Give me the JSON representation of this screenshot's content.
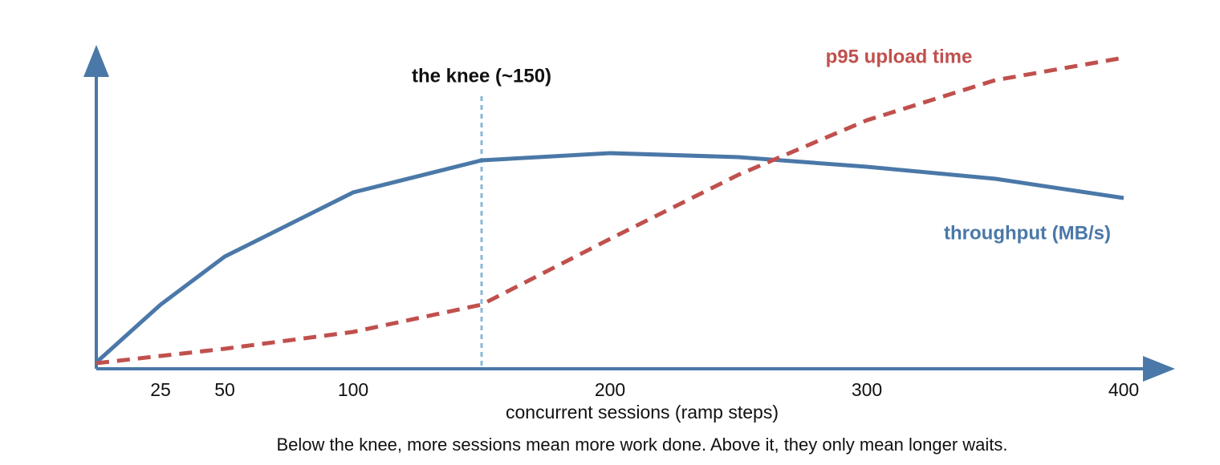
{
  "chart_data": {
    "type": "line",
    "x_label": "concurrent sessions (ramp steps)",
    "caption": "Below the knee, more sessions mean more work done. Above it, they only mean longer waits.",
    "xlim": [
      0,
      400
    ],
    "xticks": [
      25,
      50,
      100,
      200,
      300,
      400
    ],
    "ylim": [
      0,
      100
    ],
    "series": [
      {
        "name": "throughput (MB/s)",
        "color": "#4a78a8",
        "dashed": false,
        "x": [
          0,
          25,
          50,
          100,
          150,
          200,
          250,
          300,
          350,
          400
        ],
        "values": [
          2,
          20,
          35,
          55,
          65,
          67.25,
          66,
          63,
          59.25,
          53.25
        ]
      },
      {
        "name": "p95 upload time",
        "color": "#c0504d",
        "dashed": true,
        "x": [
          0,
          50,
          100,
          150,
          200,
          250,
          300,
          350,
          400
        ],
        "values": [
          1.75,
          6.25,
          11.5,
          20,
          40.5,
          60.5,
          77.5,
          90,
          97
        ]
      }
    ],
    "annotations": [
      {
        "text": "the knee (~150)",
        "x": 150,
        "color": "#8ab8d8"
      }
    ]
  }
}
